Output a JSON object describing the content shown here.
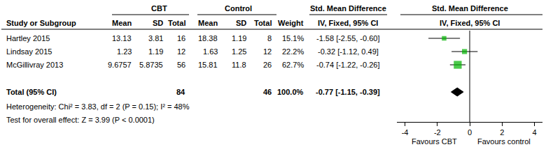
{
  "chart_data": {
    "type": "forest",
    "title": "Std. Mean Difference",
    "subtitle": "IV, Fixed, 95% CI",
    "categories": [
      "Hartley 2015",
      "Lindsay 2015",
      "McGillivray 2013"
    ],
    "values": [
      -1.58,
      -0.32,
      -0.74
    ],
    "lower": [
      -2.55,
      -1.12,
      -1.22
    ],
    "upper": [
      -0.6,
      0.49,
      -0.26
    ],
    "weights": [
      15.1,
      22.2,
      62.7
    ],
    "summary": {
      "name": "Total (95% CI)",
      "value": -0.77,
      "lower": -1.15,
      "upper": -0.39,
      "weight": 100.0
    },
    "color": "#00b300",
    "marker": "square",
    "xlim": [
      -4.5,
      4.5
    ],
    "xticks": [
      -4,
      -2,
      0,
      2,
      4
    ],
    "grid": false,
    "annotations": [
      "Favours CBT",
      "Favours control"
    ]
  },
  "table": {
    "group_headers": [
      "CBT",
      "Control",
      "Std. Mean Difference"
    ],
    "columns": [
      "Study or Subgroup",
      "Mean",
      "SD",
      "Total",
      "Mean",
      "SD",
      "Total",
      "Weight",
      "IV, Fixed, 95% CI"
    ],
    "rows": [
      [
        "Hartley 2015",
        "13.13",
        "3.81",
        "16",
        "18.38",
        "1.19",
        "8",
        "15.1%",
        "-1.58 [-2.55, -0.60]"
      ],
      [
        "Lindsay 2015",
        "1.23",
        "1.19",
        "12",
        "1.63",
        "1.25",
        "12",
        "22.2%",
        "-0.32 [-1.12, 0.49]"
      ],
      [
        "McGillivray 2013",
        "9.6757",
        "5.8735",
        "56",
        "15.81",
        "11.8",
        "26",
        "62.7%",
        "-0.74 [-1.22, -0.26]"
      ],
      [
        "Total (95% CI)",
        null,
        null,
        "84",
        null,
        null,
        "46",
        "100.0%",
        "-0.77 [-1.15, -0.39]"
      ]
    ],
    "footer": [
      "Heterogeneity: Chi² = 3.83, df = 2 (P = 0.15); I² = 48%",
      "Test for overall effect: Z = 3.99 (P < 0.0001)"
    ]
  }
}
